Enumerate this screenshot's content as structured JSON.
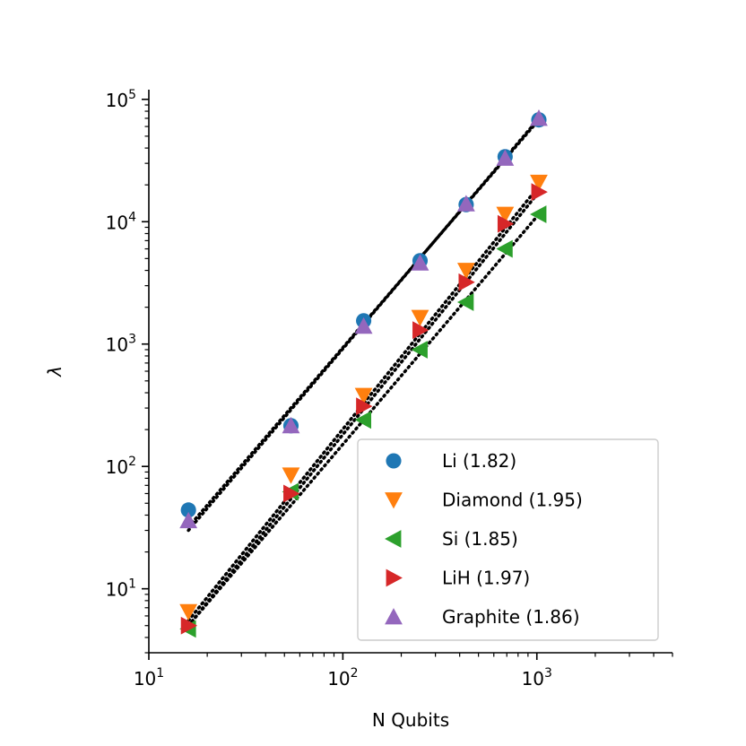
{
  "chart_data": {
    "type": "scatter",
    "title": "",
    "xlabel": "N Qubits",
    "ylabel": "λ",
    "xscale": "log",
    "yscale": "log",
    "xlim": [
      10,
      5000
    ],
    "ylim": [
      3,
      120000
    ],
    "grid": false,
    "legend_position": "lower-right",
    "x_ticks": [
      {
        "value": 10,
        "base": "10",
        "exp": "1"
      },
      {
        "value": 100,
        "base": "10",
        "exp": "2"
      },
      {
        "value": 1000,
        "base": "10",
        "exp": "3"
      }
    ],
    "y_ticks": [
      {
        "value": 10,
        "base": "10",
        "exp": "1"
      },
      {
        "value": 100,
        "base": "10",
        "exp": "2"
      },
      {
        "value": 1000,
        "base": "10",
        "exp": "3"
      },
      {
        "value": 10000,
        "base": "10",
        "exp": "4"
      },
      {
        "value": 100000,
        "base": "10",
        "exp": "5"
      }
    ],
    "series": [
      {
        "name": "Li (1.82)",
        "marker": "circle",
        "color": "#1f77b4",
        "x": [
          16,
          54,
          128,
          250,
          432,
          686,
          1024
        ],
        "y": [
          44,
          215,
          1550,
          4800,
          13800,
          34000,
          68000
        ],
        "fit": [
          [
            16,
            32
          ],
          [
            1024,
            68000
          ]
        ]
      },
      {
        "name": "Diamond (1.95)",
        "marker": "triangle-down",
        "color": "#ff7f0e",
        "x": [
          16,
          54,
          128,
          250,
          432,
          686,
          1024
        ],
        "y": [
          6.5,
          85,
          380,
          1650,
          4000,
          11500,
          21000
        ],
        "fit": [
          [
            16,
            5.5
          ],
          [
            1024,
            19500
          ]
        ]
      },
      {
        "name": "Si (1.85)",
        "marker": "triangle-left",
        "color": "#2ca02c",
        "x": [
          16,
          54,
          128,
          250,
          432,
          686,
          1024
        ],
        "y": [
          4.7,
          62,
          240,
          900,
          2200,
          6000,
          11500
        ],
        "fit": [
          [
            16,
            5
          ],
          [
            1024,
            11500
          ]
        ]
      },
      {
        "name": "LiH (1.97)",
        "marker": "triangle-right",
        "color": "#d62728",
        "x": [
          16,
          54,
          128,
          250,
          432,
          686,
          1024
        ],
        "y": [
          5.0,
          60,
          310,
          1300,
          3200,
          9600,
          17500
        ],
        "fit": [
          [
            16,
            5
          ],
          [
            1024,
            17500
          ]
        ]
      },
      {
        "name": "Graphite (1.86)",
        "marker": "triangle-up",
        "color": "#9467bd",
        "x": [
          16,
          54,
          128,
          250,
          432,
          686,
          1024
        ],
        "y": [
          36,
          215,
          1400,
          4600,
          14000,
          33000,
          70000
        ],
        "fit": [
          [
            16,
            30
          ],
          [
            1024,
            70000
          ]
        ]
      }
    ]
  }
}
